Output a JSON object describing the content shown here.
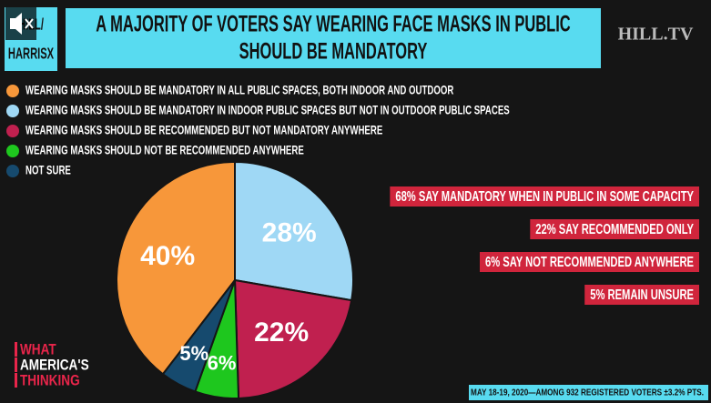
{
  "chart_data": {
    "type": "pie",
    "title": [
      "A MAJORITY OF VOTERS SAY WEARING FACE MASKS IN PUBLIC",
      "SHOULD BE MANDATORY"
    ],
    "logo": [
      "HILL/",
      "HARRISX"
    ],
    "network": "HILL.TV",
    "categories": [
      "WEARING MASKS SHOULD BE MANDATORY IN ALL PUBLIC SPACES, BOTH INDOOR AND OUTDOOR",
      "WEARING MASKS SHOULD BE MANDATORY IN INDOOR PUBLIC SPACES BUT NOT IN OUTDOOR PUBLIC SPACES",
      "WEARING MASKS SHOULD BE RECOMMENDED BUT NOT MANDATORY ANYWHERE",
      "WEARING MASKS SHOULD NOT BE RECOMMENDED ANYWHERE",
      "NOT SURE"
    ],
    "values": [
      40,
      28,
      22,
      6,
      5
    ],
    "value_labels": [
      "40%",
      "28%",
      "22%",
      "6%",
      "5%"
    ],
    "colors": [
      "#f7973a",
      "#9fd8f5",
      "#c0204f",
      "#1ec71e",
      "#164a6e"
    ],
    "annotations": [
      "68% SAY MANDATORY WHEN IN PUBLIC IN SOME CAPACITY",
      "22% SAY RECOMMENDED ONLY",
      "6% SAY NOT RECOMMENDED ANYWHERE",
      "5% REMAIN UNSURE"
    ],
    "branding": [
      "WHAT",
      "AMERICA'S",
      "THINKING"
    ],
    "footnote": "MAY 18-19, 2020—AMONG 932 REGISTERED VOTERS ±3.2% PTS."
  }
}
